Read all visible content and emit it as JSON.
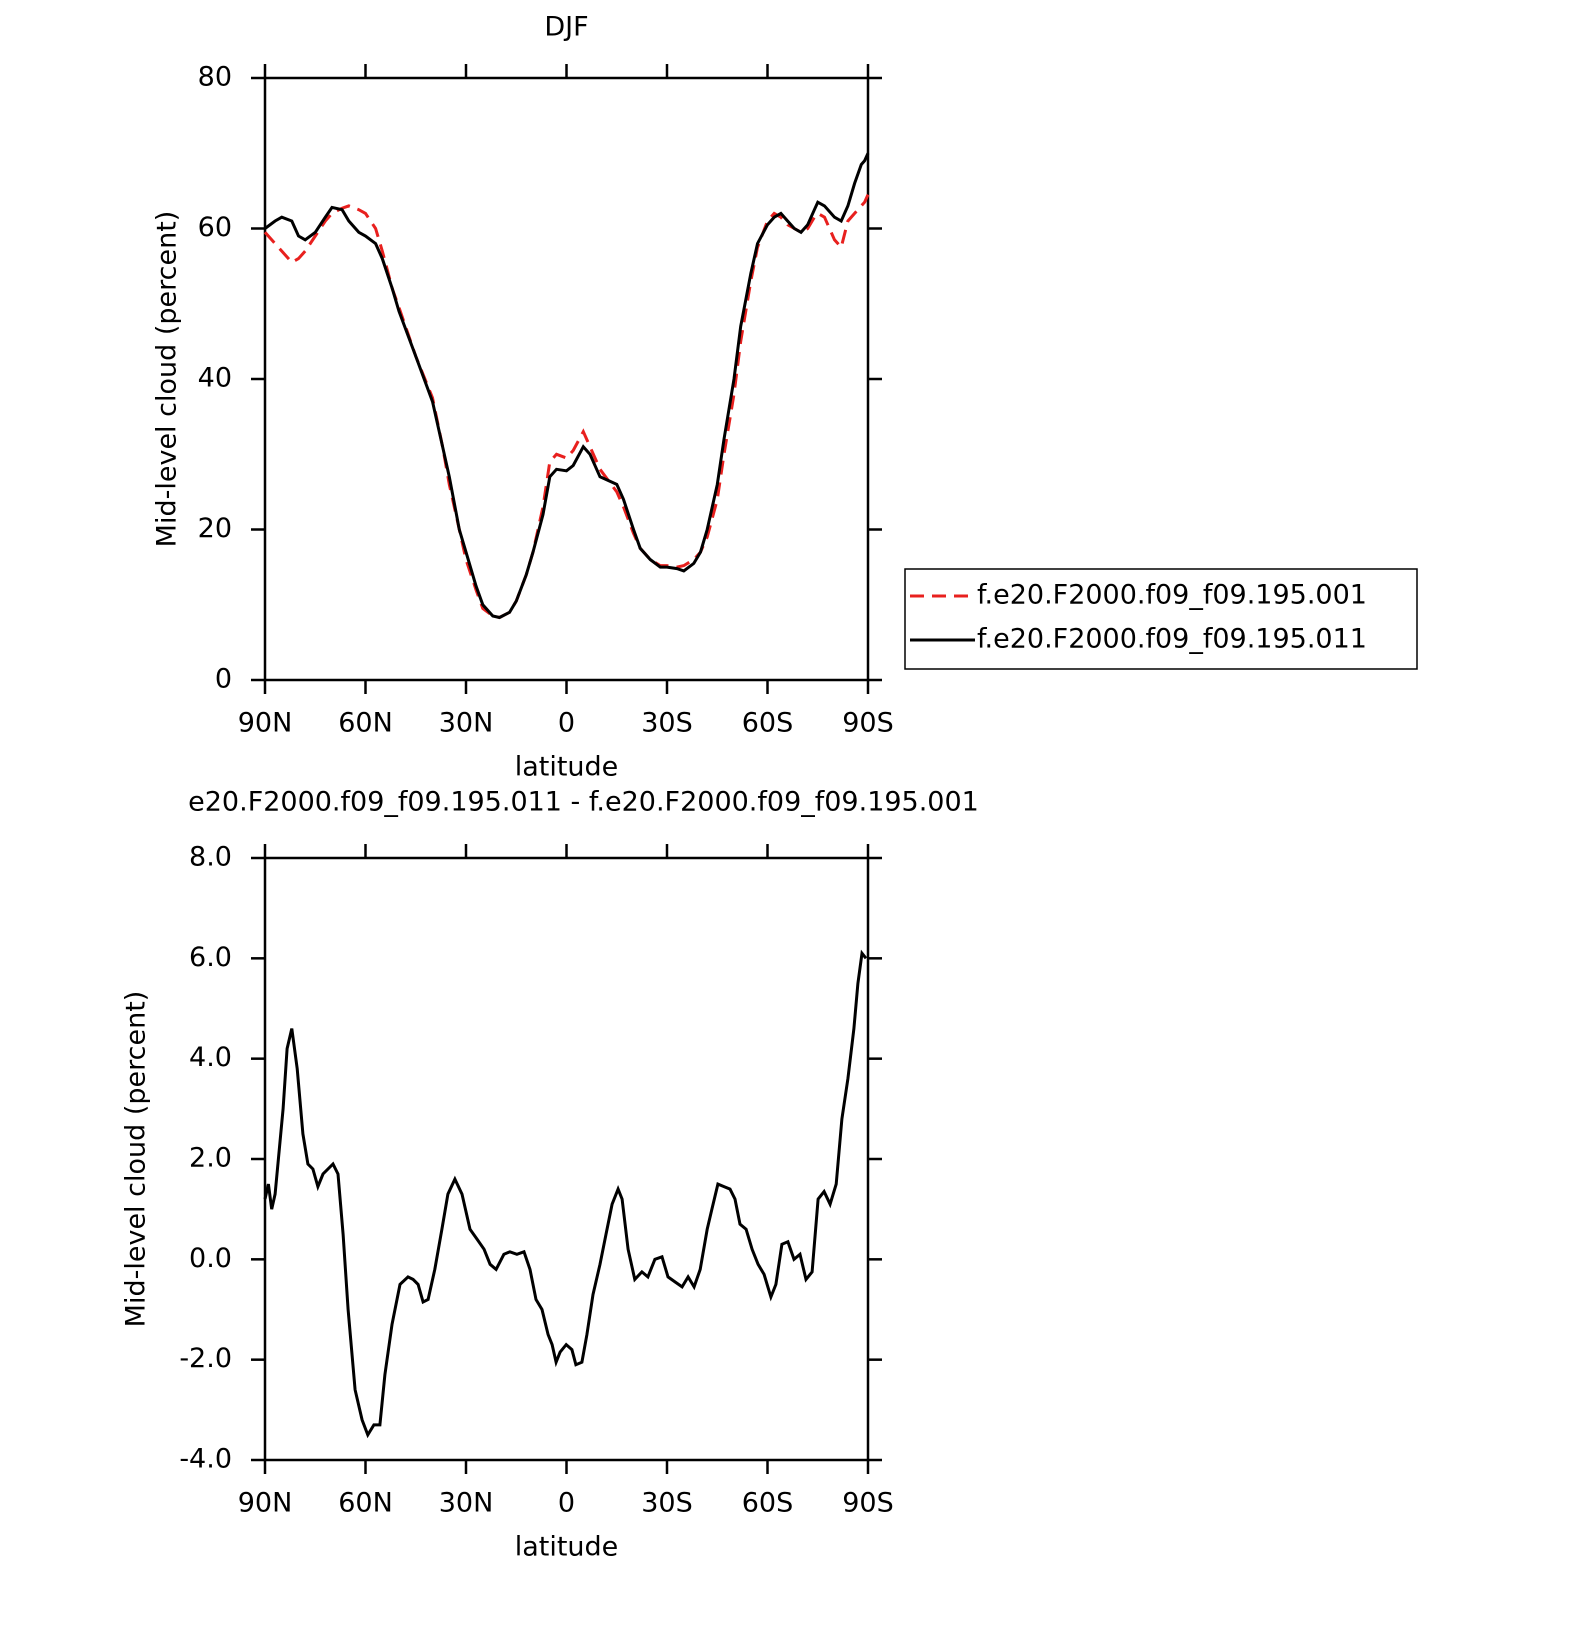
{
  "chart_data": [
    {
      "type": "line",
      "title": "DJF",
      "xlabel": "latitude",
      "ylabel": "Mid-level cloud (percent)",
      "xlim": [
        90,
        -90
      ],
      "xticks": [
        {
          "value": 90,
          "label": "90N"
        },
        {
          "value": 60,
          "label": "60N"
        },
        {
          "value": 30,
          "label": "30N"
        },
        0,
        {
          "value": -30,
          "label": "30S"
        },
        {
          "value": -60,
          "label": "60S"
        },
        {
          "value": -90,
          "label": "90S"
        }
      ],
      "ylim": [
        0,
        80
      ],
      "yticks": [
        0,
        20,
        40,
        60,
        80
      ],
      "legend": "right",
      "x": [
        90,
        87,
        85,
        82,
        80,
        78,
        75,
        72,
        70,
        67,
        65,
        62,
        60,
        57,
        55,
        52,
        50,
        45,
        40,
        37,
        35,
        32,
        30,
        27,
        25,
        22,
        20,
        17,
        15,
        12,
        10,
        7,
        5,
        3,
        0,
        -2,
        -5,
        -7,
        -10,
        -15,
        -17,
        -20,
        -22,
        -25,
        -28,
        -30,
        -33,
        -35,
        -38,
        -40,
        -42,
        -45,
        -47,
        -50,
        -52,
        -55,
        -57,
        -60,
        -62,
        -64,
        -66,
        -68,
        -70,
        -72,
        -74,
        -75,
        -77,
        -80,
        -82,
        -84,
        -86,
        -88,
        -89,
        -90
      ],
      "series": [
        {
          "name": "f.e20.F2000.f09_f09.195.001",
          "color": "#e8201e",
          "style": "dashed",
          "values": [
            59.5,
            58,
            57,
            55.5,
            56,
            57,
            59,
            61,
            62,
            62.7,
            63,
            62.5,
            62,
            60,
            57,
            52,
            49.5,
            43,
            37.5,
            31,
            26,
            20,
            16,
            12,
            9.5,
            8.5,
            8.3,
            9,
            10.5,
            14,
            17,
            23,
            29,
            30,
            29.5,
            30.5,
            33,
            31,
            28,
            25,
            23,
            19.5,
            17.5,
            16,
            15.2,
            15.2,
            15,
            15.2,
            16,
            17,
            19,
            24,
            30,
            38,
            45,
            53,
            57.5,
            61,
            62,
            61.5,
            60.5,
            60,
            59.5,
            60,
            61.5,
            62,
            61.5,
            58.5,
            57.5,
            61,
            62,
            63,
            63.5,
            64.5
          ]
        },
        {
          "name": "f.e20.F2000.f09_f09.195.011",
          "color": "#000000",
          "style": "solid",
          "values": [
            60,
            61,
            61.5,
            61,
            59,
            58.5,
            59.5,
            61.5,
            62.8,
            62.5,
            61,
            59.5,
            59,
            58,
            56,
            52,
            49,
            43,
            37,
            31,
            27,
            20,
            17,
            12.5,
            10,
            8.5,
            8.3,
            9,
            10.5,
            14,
            17,
            22,
            27,
            28,
            27.8,
            28.5,
            31,
            30,
            27,
            26,
            24,
            20,
            17.5,
            16,
            15,
            15,
            14.8,
            14.5,
            15.5,
            17,
            20,
            26,
            32,
            40,
            47,
            54,
            58,
            60.5,
            61.5,
            62,
            61,
            60,
            59.5,
            60.5,
            62.5,
            63.5,
            63,
            61.5,
            61,
            63,
            66,
            68.5,
            69,
            70
          ]
        }
      ]
    },
    {
      "type": "line",
      "title": "e20.F2000.f09_f09.195.011 - f.e20.F2000.f09_f09.195.001",
      "xlabel": "latitude",
      "ylabel": "Mid-level cloud (percent)",
      "xlim": [
        90,
        -90
      ],
      "xticks": [
        {
          "value": 90,
          "label": "90N"
        },
        {
          "value": 60,
          "label": "60N"
        },
        {
          "value": 30,
          "label": "30N"
        },
        0,
        {
          "value": -30,
          "label": "30S"
        },
        {
          "value": -60,
          "label": "60S"
        },
        {
          "value": -90,
          "label": "90S"
        }
      ],
      "ylim": [
        -4,
        8
      ],
      "yticks": [
        {
          "value": -4,
          "label": "-4.0"
        },
        {
          "value": -2,
          "label": "-2.0"
        },
        {
          "value": 0,
          "label": "0.0"
        },
        {
          "value": 2,
          "label": "2.0"
        },
        {
          "value": 4,
          "label": "4.0"
        },
        {
          "value": 6,
          "label": "6.0"
        },
        {
          "value": 8,
          "label": "8.0"
        }
      ],
      "color": "#000000",
      "x": [
        90,
        89,
        88,
        87,
        84.6,
        83.4,
        82,
        80.4,
        78.7,
        77.2,
        75.7,
        74.2,
        72.7,
        69.7,
        68.2,
        66.7,
        65.2,
        63.1,
        61,
        59.3,
        57.5,
        55.7,
        54.2,
        52.1,
        49.7,
        47.3,
        45.8,
        44.3,
        42.8,
        41.3,
        39.3,
        37.2,
        35.4,
        33.3,
        31.2,
        28.8,
        26.7,
        24.6,
        22.8,
        21,
        18.7,
        16.9,
        14.8,
        12.7,
        10.9,
        9.1,
        7.3,
        5.5,
        4.3,
        3.1,
        1.9,
        0.1,
        -1.6,
        -2.8,
        -4.6,
        -6.1,
        -7.9,
        -10,
        -11.8,
        -13.6,
        -15.4,
        -16.6,
        -18.4,
        -20.4,
        -22.5,
        -24.3,
        -26.4,
        -28.5,
        -30.3,
        -32.4,
        -34.5,
        -36.3,
        -38.1,
        -39.9,
        -42,
        -43.4,
        -45.2,
        -47,
        -48.8,
        -50.3,
        -51.8,
        -53.6,
        -55.4,
        -57.2,
        -59,
        -61,
        -62.5,
        -64.3,
        -66.1,
        -67.9,
        -69.7,
        -71.5,
        -73.3,
        -75.1,
        -76.9,
        -78.7,
        -80.5,
        -82.2,
        -84,
        -85.8,
        -87,
        -88.2,
        -89.4
      ],
      "values": [
        1.2,
        1.5,
        1.0,
        1.3,
        3.0,
        4.2,
        4.6,
        3.8,
        2.5,
        1.9,
        1.8,
        1.45,
        1.7,
        1.9,
        1.7,
        0.5,
        -1.0,
        -2.6,
        -3.2,
        -3.5,
        -3.3,
        -3.3,
        -2.3,
        -1.3,
        -0.5,
        -0.35,
        -0.4,
        -0.5,
        -0.85,
        -0.8,
        -0.2,
        0.6,
        1.3,
        1.6,
        1.3,
        0.6,
        0.4,
        0.2,
        -0.1,
        -0.2,
        0.1,
        0.15,
        0.1,
        0.15,
        -0.2,
        -0.8,
        -1.0,
        -1.5,
        -1.7,
        -2.05,
        -1.85,
        -1.7,
        -1.8,
        -2.1,
        -2.05,
        -1.5,
        -0.7,
        -0.1,
        0.5,
        1.1,
        1.4,
        1.2,
        0.2,
        -0.4,
        -0.25,
        -0.35,
        0,
        0.05,
        -0.35,
        -0.45,
        -0.55,
        -0.35,
        -0.55,
        -0.2,
        0.6,
        1.0,
        1.5,
        1.45,
        1.4,
        1.2,
        0.7,
        0.6,
        0.2,
        -0.1,
        -0.3,
        -0.75,
        -0.5,
        0.3,
        0.35,
        0,
        0.1,
        -0.4,
        -0.25,
        1.2,
        1.35,
        1.1,
        1.5,
        2.8,
        3.6,
        4.6,
        5.5,
        6.1,
        6.0
      ]
    }
  ]
}
